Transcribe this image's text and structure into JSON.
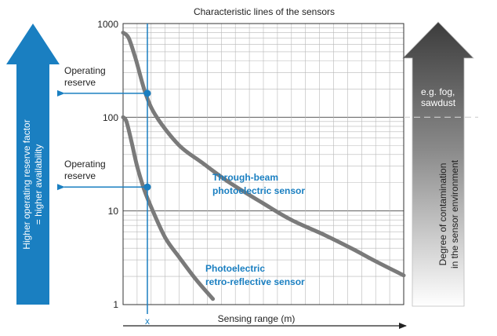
{
  "chart_data": {
    "type": "line",
    "title": "Characteristic lines of the sensors",
    "xlabel": "Sensing range (m)",
    "x_marker_label": "x",
    "y_scale": "log",
    "ylim": [
      1,
      1000
    ],
    "y_ticks": [
      "1",
      "10",
      "100",
      "1000"
    ],
    "grid": true,
    "series": [
      {
        "name": "Through-beam photoelectric sensor",
        "color": "#7a7a7a",
        "label_color": "#1a7fc1",
        "x": [
          0.0,
          0.02,
          0.045,
          0.08,
          0.12,
          0.2,
          0.28,
          0.38,
          0.5,
          0.6,
          0.72,
          0.82,
          0.9,
          1.0
        ],
        "y": [
          800,
          700,
          420,
          180,
          100,
          50,
          33,
          20,
          12,
          8,
          5.5,
          3.9,
          2.9,
          2.05
        ]
      },
      {
        "name": "Photoelectric retro-reflective sensor",
        "color": "#7a7a7a",
        "label_color": "#1a7fc1",
        "x": [
          0.0,
          0.012,
          0.03,
          0.05,
          0.075,
          0.1,
          0.15,
          0.2,
          0.26,
          0.32
        ],
        "y": [
          100,
          90,
          55,
          30,
          17,
          11,
          5.2,
          3.2,
          1.85,
          1.15
        ]
      }
    ],
    "annotations": {
      "operating_reserve_upper": {
        "label": "Operating reserve",
        "y": 180
      },
      "operating_reserve_lower": {
        "label": "Operating reserve",
        "y": 18
      },
      "contamination_threshold": {
        "label": "e.g. fog, sawdust",
        "y": 100
      }
    },
    "left_arrow": {
      "label_line1": "Higher operating reserve factor",
      "label_line2": "= higher availability",
      "color": "#1a7fc1"
    },
    "right_arrow": {
      "label_line1": "Degree of contamination",
      "label_line2": "in the sensor environment",
      "color": "#555555"
    },
    "accent_color": "#1a7fc1"
  }
}
